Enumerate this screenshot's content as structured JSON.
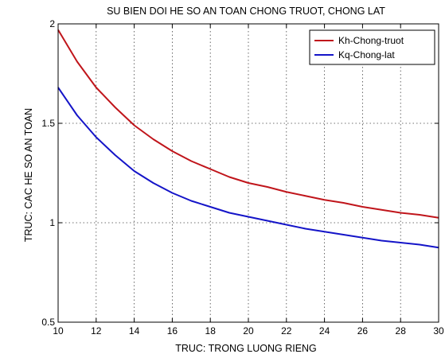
{
  "chart_data": {
    "type": "line",
    "title": "SU BIEN DOI HE SO AN TOAN CHONG TRUOT, CHONG LAT",
    "xlabel": "TRUC: TRONG LUONG RIENG",
    "ylabel": "TRUC: CAC HE SO AN TOAN",
    "xlim": [
      10,
      30
    ],
    "ylim": [
      0.5,
      2
    ],
    "xticks": [
      10,
      12,
      14,
      16,
      18,
      20,
      22,
      24,
      26,
      28,
      30
    ],
    "yticks": [
      0.5,
      1,
      1.5,
      2
    ],
    "ytick_labels": [
      "0.5",
      "1",
      "1.5",
      "2"
    ],
    "grid": true,
    "legend_position": "top-right",
    "x": [
      10,
      11,
      12,
      13,
      14,
      15,
      16,
      17,
      18,
      19,
      20,
      21,
      22,
      23,
      24,
      25,
      26,
      27,
      28,
      29,
      30
    ],
    "series": [
      {
        "name": "Kh-Chong-truot",
        "color": "#c0151b",
        "values": [
          1.97,
          1.81,
          1.68,
          1.58,
          1.49,
          1.42,
          1.36,
          1.31,
          1.27,
          1.23,
          1.2,
          1.18,
          1.155,
          1.135,
          1.115,
          1.1,
          1.08,
          1.065,
          1.05,
          1.04,
          1.025
        ]
      },
      {
        "name": "Kq-Chong-lat",
        "color": "#1414c8",
        "values": [
          1.68,
          1.54,
          1.43,
          1.34,
          1.26,
          1.2,
          1.15,
          1.11,
          1.08,
          1.05,
          1.03,
          1.01,
          0.99,
          0.97,
          0.955,
          0.94,
          0.925,
          0.91,
          0.9,
          0.89,
          0.875
        ]
      }
    ]
  }
}
